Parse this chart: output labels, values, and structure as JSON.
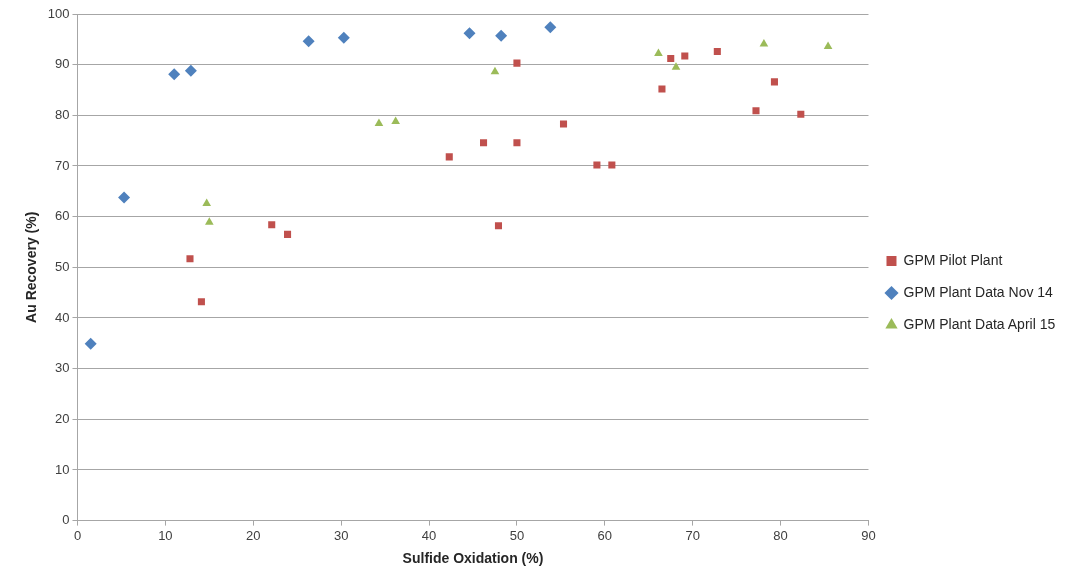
{
  "chart_data": {
    "type": "scatter",
    "xlabel": "Sulfide Oxidation (%)",
    "ylabel": "Au Recovery (%)",
    "xlim": [
      0,
      90
    ],
    "xticks": [
      0,
      10,
      20,
      30,
      40,
      50,
      60,
      70,
      80,
      90
    ],
    "ylim": [
      0,
      100
    ],
    "yticks": [
      0,
      10,
      20,
      30,
      40,
      50,
      60,
      70,
      80,
      90,
      100
    ],
    "grid": "y",
    "legend": "right",
    "series": [
      {
        "name": "GPM Pilot Plant",
        "color": "#c0504d",
        "marker": "square",
        "x": [
          12.8,
          14.1,
          22.1,
          23.9,
          42.3,
          46.2,
          50.0,
          50.0,
          47.9,
          55.3,
          59.1,
          60.8,
          66.5,
          67.5,
          69.1,
          72.8,
          77.2,
          79.3,
          82.3
        ],
        "values": [
          51.7,
          43.2,
          58.4,
          56.5,
          71.8,
          74.6,
          74.6,
          90.3,
          58.2,
          78.3,
          70.2,
          70.2,
          85.2,
          91.2,
          91.7,
          92.6,
          80.9,
          86.6,
          80.2
        ]
      },
      {
        "name": "GPM Plant Data Nov 14",
        "color": "#4f81bd",
        "marker": "diamond",
        "x": [
          1.5,
          5.3,
          11.0,
          12.9,
          26.3,
          30.3,
          44.6,
          48.2,
          53.8
        ],
        "values": [
          34.9,
          63.8,
          88.1,
          88.8,
          94.6,
          95.3,
          96.2,
          95.7,
          97.4
        ]
      },
      {
        "name": "GPM Plant Data April 15",
        "color": "#9bbb59",
        "marker": "triangle",
        "x": [
          14.7,
          15.0,
          34.3,
          36.2,
          47.5,
          66.1,
          68.1,
          78.1,
          85.4
        ],
        "values": [
          62.6,
          58.9,
          78.4,
          78.8,
          88.6,
          92.2,
          89.5,
          94.1,
          93.6
        ]
      }
    ]
  }
}
